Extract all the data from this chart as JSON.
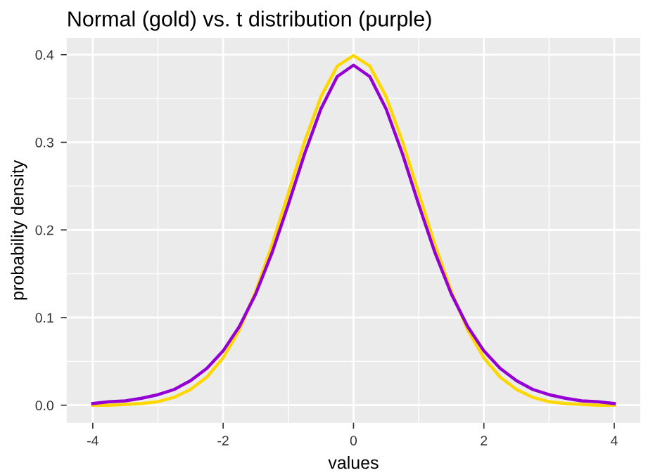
{
  "chart_data": {
    "type": "line",
    "title": "Normal (gold) vs. t distribution (purple)",
    "xlabel": "values",
    "ylabel": "probability density",
    "x": [
      -4,
      -3.75,
      -3.5,
      -3.25,
      -3,
      -2.75,
      -2.5,
      -2.25,
      -2,
      -1.75,
      -1.5,
      -1.25,
      -1,
      -0.75,
      -0.5,
      -0.25,
      0,
      0.25,
      0.5,
      0.75,
      1,
      1.25,
      1.5,
      1.75,
      2,
      2.25,
      2.5,
      2.75,
      3,
      3.25,
      3.5,
      3.75,
      4
    ],
    "series": [
      {
        "color": "#ffd700",
        "values": [
          0.0,
          0.0,
          0.001,
          0.002,
          0.004,
          0.009,
          0.018,
          0.032,
          0.054,
          0.086,
          0.13,
          0.183,
          0.242,
          0.301,
          0.352,
          0.387,
          0.399,
          0.387,
          0.352,
          0.301,
          0.242,
          0.183,
          0.13,
          0.086,
          0.054,
          0.032,
          0.018,
          0.009,
          0.004,
          0.002,
          0.001,
          0.0,
          0.0
        ]
      },
      {
        "color": "#9400d3",
        "values": [
          0.002,
          0.004,
          0.005,
          0.008,
          0.012,
          0.018,
          0.028,
          0.042,
          0.062,
          0.09,
          0.127,
          0.174,
          0.229,
          0.287,
          0.338,
          0.375,
          0.388,
          0.375,
          0.338,
          0.287,
          0.229,
          0.174,
          0.127,
          0.09,
          0.062,
          0.042,
          0.028,
          0.018,
          0.012,
          0.008,
          0.005,
          0.004,
          0.002
        ]
      }
    ],
    "xlim": [
      -4.4,
      4.4
    ],
    "ylim": [
      -0.02,
      0.419
    ],
    "xticks": [
      -4,
      -2,
      0,
      2,
      4
    ],
    "yticks": [
      {
        "value": 0,
        "label": "0.0"
      },
      {
        "value": 0.1,
        "label": "0.1"
      },
      {
        "value": 0.2,
        "label": "0.2"
      },
      {
        "value": 0.3,
        "label": "0.3"
      },
      {
        "value": 0.4,
        "label": "0.4"
      }
    ],
    "grid": true,
    "marker": "none",
    "line_style": "solid"
  }
}
